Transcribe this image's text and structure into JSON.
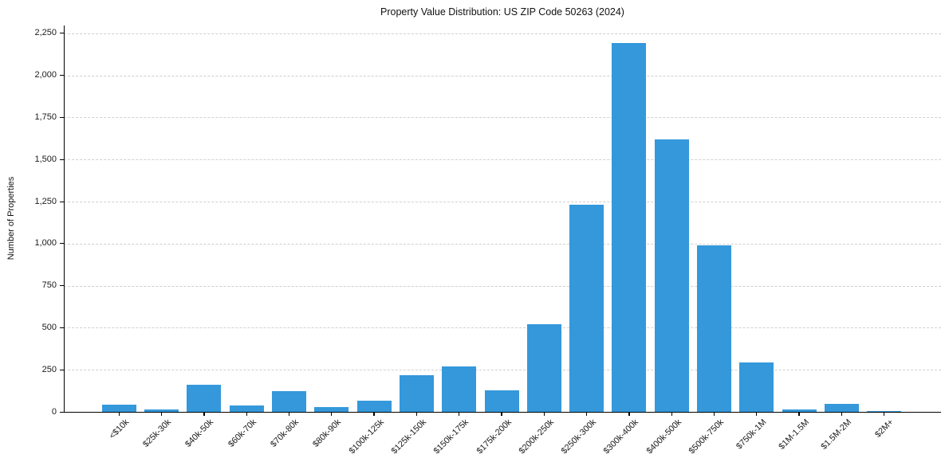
{
  "chart_data": {
    "type": "bar",
    "title": "Property Value Distribution: US ZIP Code 50263 (2024)",
    "ylabel": "Number of Properties",
    "xlabel": "",
    "categories": [
      "<$10k",
      "$25k-30k",
      "$40k-50k",
      "$60k-70k",
      "$70k-80k",
      "$80k-90k",
      "$100k-125k",
      "$125k-150k",
      "$150k-175k",
      "$175k-200k",
      "$200k-250k",
      "$250k-300k",
      "$300k-400k",
      "$400k-500k",
      "$500k-750k",
      "$750k-1M",
      "$1M-1.5M",
      "$1.5M-2M",
      "$2M+"
    ],
    "values": [
      42,
      14,
      160,
      38,
      123,
      28,
      65,
      220,
      268,
      128,
      520,
      1230,
      2190,
      1620,
      990,
      295,
      12,
      49,
      5
    ],
    "ylim": [
      0,
      2250
    ],
    "ytick_interval": 250,
    "ytick_labels": [
      "0",
      "250",
      "500",
      "750",
      "1,000",
      "1,250",
      "1,500",
      "1,750",
      "2,000",
      "2,250"
    ],
    "legend": "none",
    "grid": "horizontal-dashed",
    "bar_color": "#3498db",
    "grid_color": "#d0d0d0",
    "axis_color": "#000000",
    "text_color": "#1a1a1a",
    "background": "#ffffff"
  }
}
